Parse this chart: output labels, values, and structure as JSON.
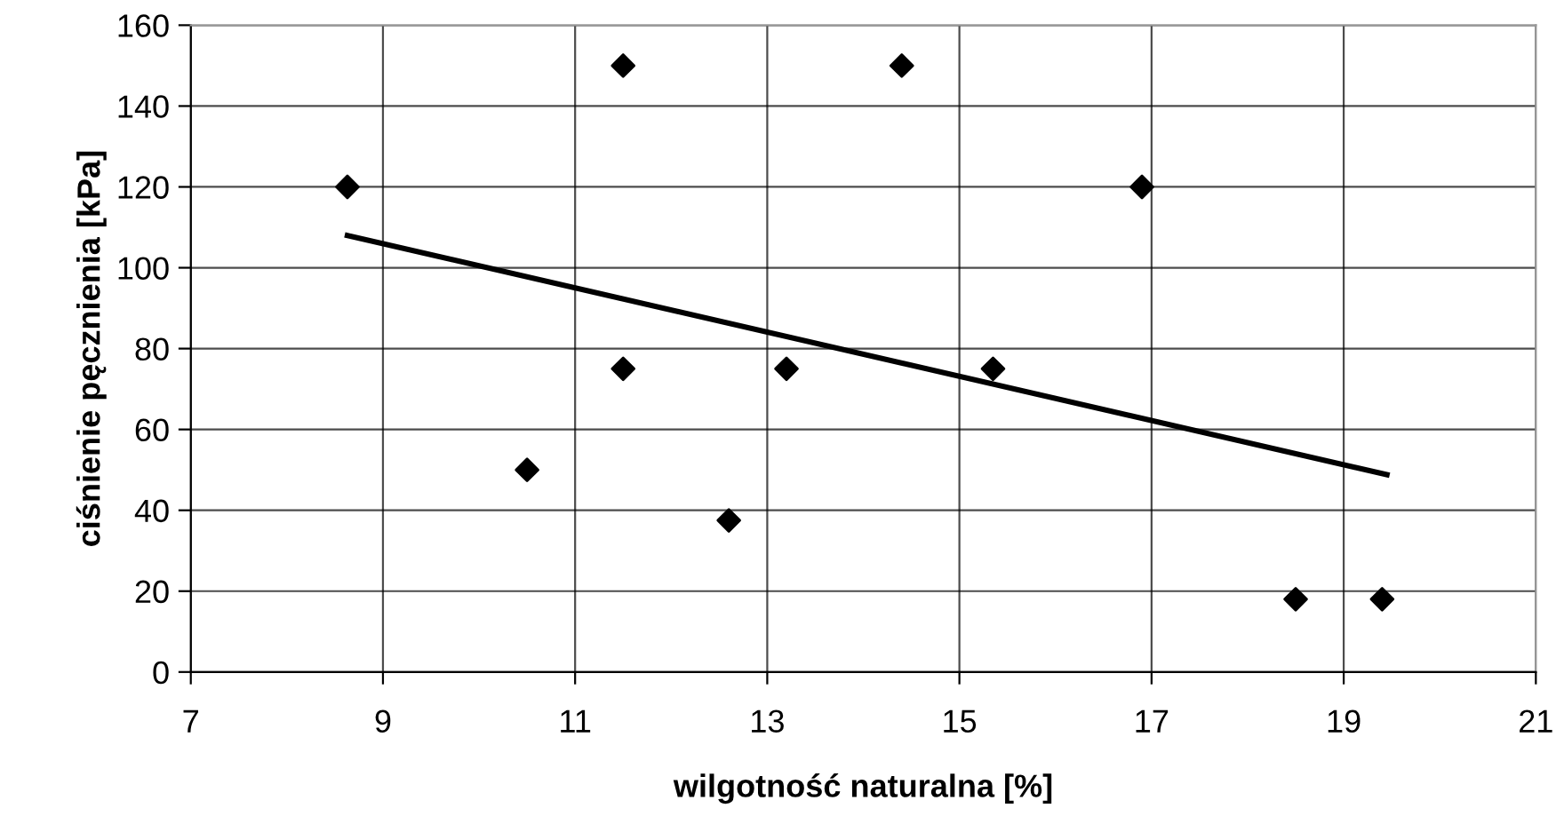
{
  "chart_data": {
    "type": "scatter",
    "xlabel": "wilgotność naturalna [%]",
    "ylabel": "ciśnienie pęcznienia [kPa]",
    "xlim": [
      7,
      21
    ],
    "xticks": [
      7,
      9,
      11,
      13,
      15,
      17,
      19,
      21
    ],
    "ylim": [
      0,
      160
    ],
    "yticks": [
      0,
      20,
      40,
      60,
      80,
      100,
      120,
      140,
      160
    ],
    "grid": true,
    "marker": "diamond",
    "series": [
      {
        "color": "#000000",
        "x": [
          8.63,
          11.5,
          11.5,
          10.5,
          12.6,
          13.2,
          14.4,
          16.9,
          15.35,
          18.5,
          19.4
        ],
        "values": [
          120,
          150,
          75,
          50,
          37.5,
          75,
          150,
          120,
          75,
          18,
          18
        ]
      },
      {
        "type": "line",
        "color": "#000000",
        "x": [
          8.63,
          19.45
        ],
        "values": [
          108,
          48.8
        ],
        "marker": "none",
        "line_style": "solid"
      }
    ]
  }
}
